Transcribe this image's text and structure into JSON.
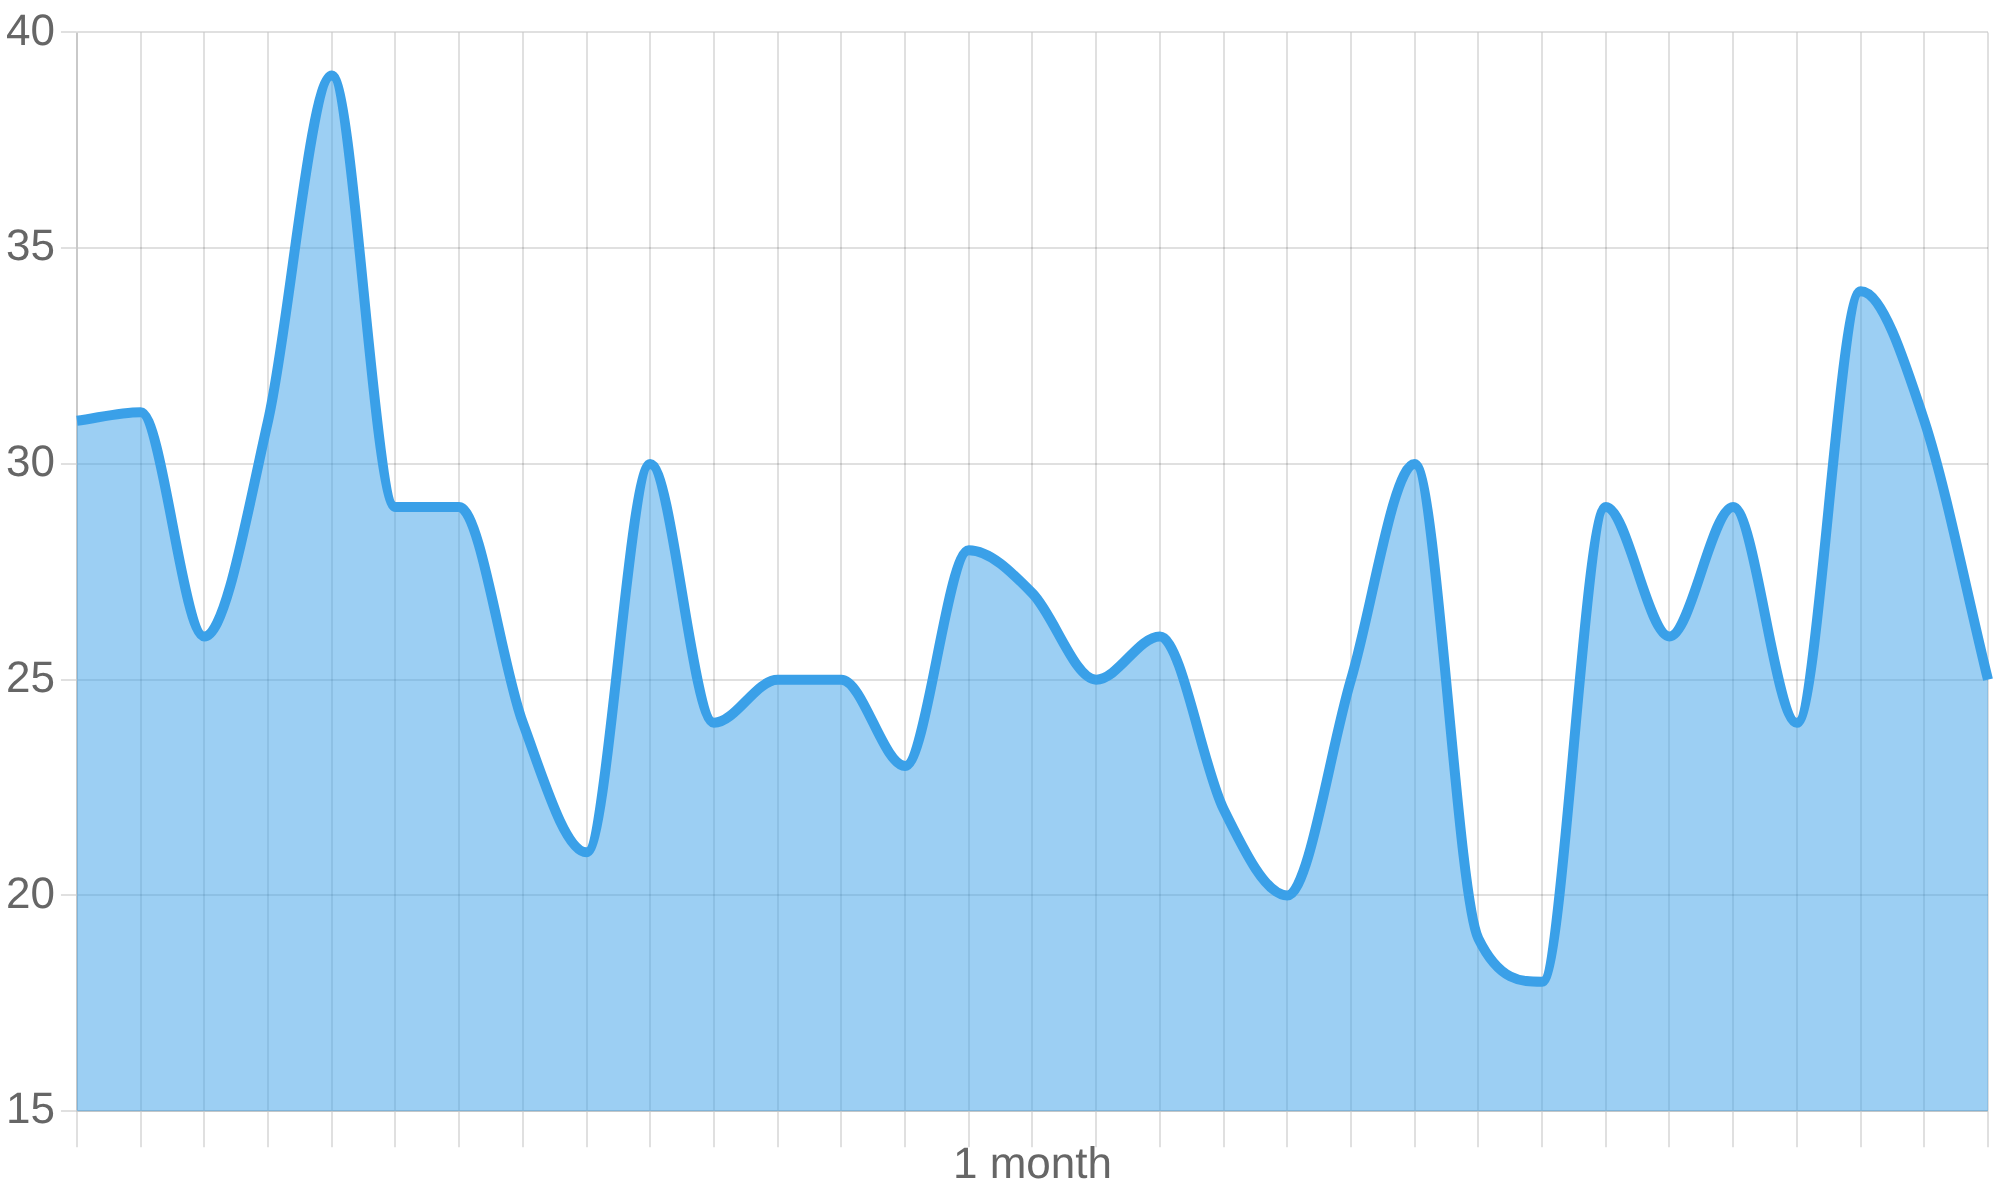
{
  "chart_data": {
    "type": "area",
    "xlabel": "1 month",
    "categories": [
      null,
      null,
      null,
      null,
      null,
      null,
      null,
      null,
      null,
      null,
      null,
      null,
      null,
      null,
      null,
      null,
      null,
      null,
      null,
      null,
      null,
      null,
      null,
      null,
      null,
      null,
      null,
      null,
      null,
      null,
      null
    ],
    "series": [
      {
        "color": "#3aa0e8",
        "values": [
          31,
          31.2,
          26,
          31,
          39,
          29,
          29,
          24,
          21,
          30,
          24,
          25,
          25,
          23,
          28,
          27,
          25,
          26,
          22,
          20,
          25,
          30,
          19,
          18,
          29,
          26,
          29,
          24,
          34,
          31,
          25
        ]
      }
    ],
    "ylim": [
      15,
      40
    ],
    "yticks": [
      15,
      20,
      25,
      30,
      35,
      40
    ],
    "grid": true,
    "legend": false,
    "tick_labels": "y"
  }
}
